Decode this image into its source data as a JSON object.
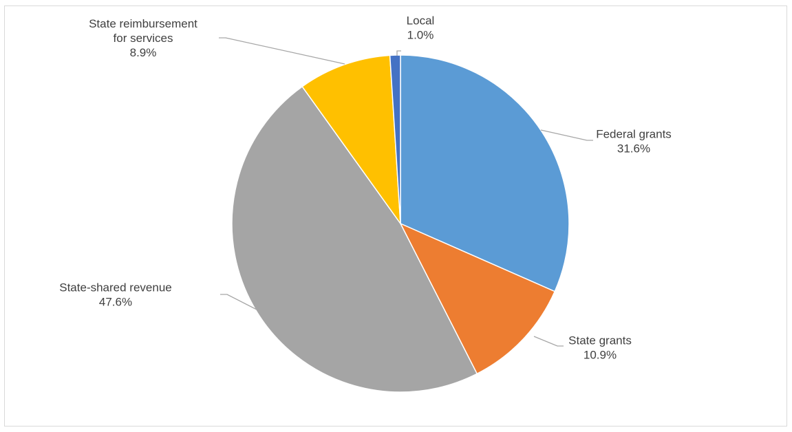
{
  "chart_data": {
    "type": "pie",
    "title": "",
    "slices": [
      {
        "label_lines": [
          "Federal grants"
        ],
        "pct_label": "31.6%",
        "value": 31.6,
        "color": "#5b9bd5"
      },
      {
        "label_lines": [
          "State grants"
        ],
        "pct_label": "10.9%",
        "value": 10.9,
        "color": "#ed7d31"
      },
      {
        "label_lines": [
          "State-shared revenue"
        ],
        "pct_label": "47.6%",
        "value": 47.6,
        "color": "#a5a5a5"
      },
      {
        "label_lines": [
          "State reimbursement",
          "for services"
        ],
        "pct_label": "8.9%",
        "value": 8.9,
        "color": "#ffc000"
      },
      {
        "label_lines": [
          "Local"
        ],
        "pct_label": "1.0%",
        "value": 1.0,
        "color": "#4472c4"
      }
    ],
    "start_angle": "12 o'clock",
    "direction": "clockwise",
    "legend": "none",
    "data_labels": "category name and percentage, outside with leader lines"
  }
}
